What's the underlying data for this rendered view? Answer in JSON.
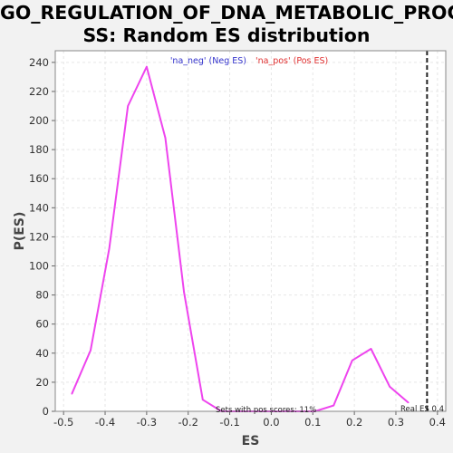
{
  "chart_data": {
    "type": "line",
    "title_line1": "GO_REGULATION_OF_DNA_METABOLIC_PROCE",
    "title_line2": "SS: Random ES distribution",
    "xlabel": "ES",
    "ylabel": "P(ES)",
    "xlim": [
      -0.52,
      0.42
    ],
    "ylim": [
      0,
      248
    ],
    "x_ticks": [
      -0.5,
      -0.4,
      -0.3,
      -0.2,
      -0.1,
      0.0,
      0.1,
      0.2,
      0.3,
      0.4
    ],
    "x_tick_labels": [
      "-0.5",
      "-0.4",
      "-0.3",
      "-0.2",
      "-0.1",
      "0.0",
      "0.1",
      "0.2",
      "0.3",
      "0.4"
    ],
    "y_ticks": [
      0,
      20,
      40,
      60,
      80,
      100,
      120,
      140,
      160,
      180,
      200,
      220,
      240
    ],
    "grid": true,
    "legend": {
      "placement": "top-center",
      "entries": [
        {
          "label": "'na_neg' (Neg ES)",
          "color": "#3333cc"
        },
        {
          "label": "'na_pos' (Pos ES)",
          "color": "#e03030"
        }
      ]
    },
    "series": [
      {
        "color": "#ee44ee",
        "x": [
          -0.48,
          -0.435,
          -0.39,
          -0.345,
          -0.3,
          -0.255,
          -0.21,
          -0.165,
          -0.12,
          -0.075,
          -0.03,
          0.015,
          0.06,
          0.105,
          0.15,
          0.195,
          0.24,
          0.285,
          0.33
        ],
        "y": [
          12,
          42,
          112,
          210,
          237,
          188,
          82,
          8,
          0,
          0,
          0,
          0,
          0,
          0,
          4,
          35,
          43,
          17,
          6
        ]
      }
    ],
    "real_es": {
      "value": 0.375,
      "label": "Real ES 0.4"
    },
    "annotation": "Sets with pos scores: 11%"
  },
  "colors": {
    "plot_bg": "#ffffff",
    "page_bg": "#f2f2f2",
    "grid": "#e6e6e6",
    "line": "#ee44ee"
  }
}
